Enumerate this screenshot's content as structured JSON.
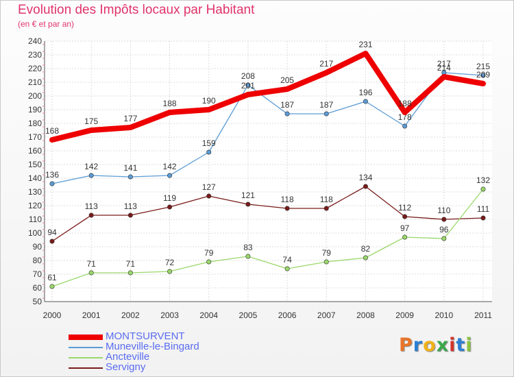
{
  "header": {
    "title": "Evolution des Impôts locaux par Habitant",
    "subtitle": "(en € et par an)"
  },
  "logo": {
    "text": "Proxiti",
    "colors": [
      "#e8742a",
      "#2b7fd4",
      "#f0b21a",
      "#3aa84a",
      "#d4342c",
      "#2b7fd4",
      "#8bc43f"
    ]
  },
  "chart_data": {
    "type": "line",
    "x": [
      "2000",
      "2001",
      "2002",
      "2003",
      "2004",
      "2005",
      "2006",
      "2007",
      "2008",
      "2009",
      "2010",
      "2011"
    ],
    "ylim": [
      50,
      240
    ],
    "yticks": [
      50,
      60,
      70,
      80,
      90,
      100,
      110,
      120,
      130,
      140,
      150,
      160,
      170,
      180,
      190,
      200,
      210,
      220,
      230,
      240
    ],
    "grid": true,
    "legend": "bottom-left",
    "series": [
      {
        "name": "Servigny",
        "color": "#7a1a1a",
        "values": [
          94,
          113,
          113,
          119,
          127,
          121,
          118,
          118,
          134,
          112,
          110,
          111
        ]
      },
      {
        "name": "Ancteville",
        "color": "#9ad86a",
        "values": [
          61,
          71,
          71,
          72,
          79,
          83,
          74,
          79,
          82,
          97,
          96,
          132
        ]
      },
      {
        "name": "Muneville-le-Bingard",
        "color": "#5b9bd5",
        "values": [
          136,
          142,
          141,
          142,
          159,
          208,
          187,
          187,
          196,
          178,
          217,
          215
        ]
      },
      {
        "name": "MONTSURVENT",
        "color": "#ee0000",
        "values": [
          168,
          175,
          177,
          188,
          190,
          201,
          205,
          217,
          231,
          188,
          214,
          209
        ]
      }
    ]
  },
  "legend_order": [
    "MONTSURVENT",
    "Muneville-le-Bingard",
    "Ancteville",
    "Servigny"
  ]
}
